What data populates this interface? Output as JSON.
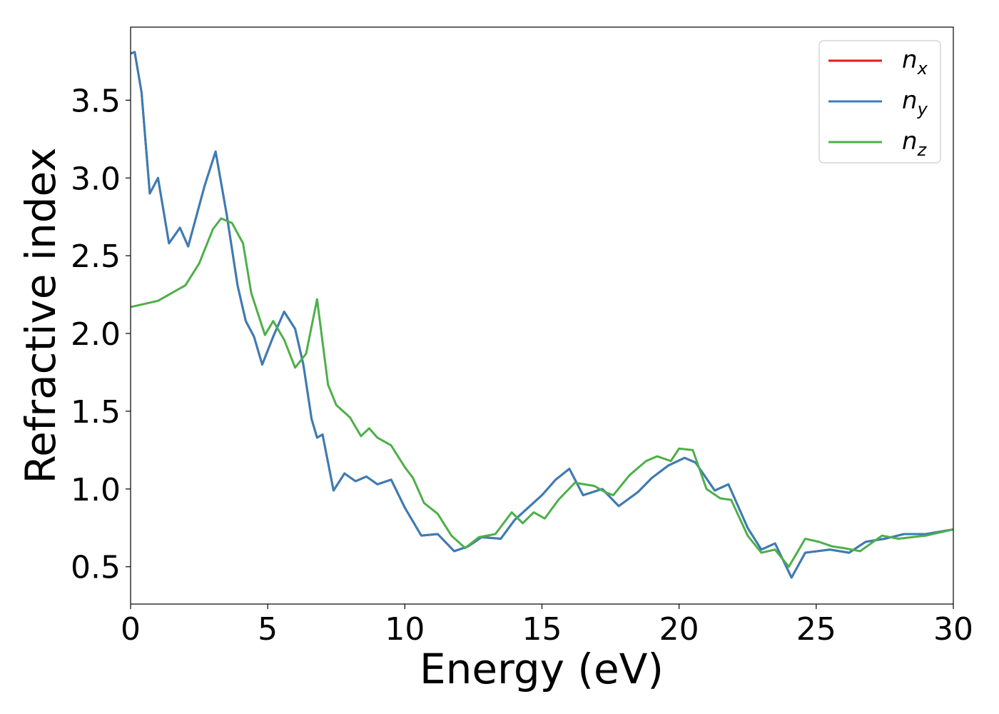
{
  "chart_data": {
    "type": "line",
    "xlabel": "Energy (eV)",
    "ylabel": "Refractive index",
    "xlim": [
      0,
      30
    ],
    "ylim": [
      0.26,
      3.97
    ],
    "xticks": [
      0,
      5,
      10,
      15,
      20,
      25,
      30
    ],
    "yticks": [
      0.5,
      {
        "value": 1,
        "label": "1.0"
      },
      1.5,
      {
        "value": 2,
        "label": "2.0"
      },
      2.5,
      {
        "value": 3,
        "label": "3.0"
      },
      3.5
    ],
    "legend": "upper right",
    "series": [
      {
        "name": "nx",
        "color": "#e41a1c",
        "x": [
          0,
          0.15,
          0.4,
          0.7,
          1.0,
          1.4,
          1.8,
          2.1,
          2.7,
          3.1,
          3.5,
          3.9,
          4.2,
          4.5,
          4.8,
          5.2,
          5.6,
          6.0,
          6.3,
          6.6,
          6.8,
          7.0,
          7.4,
          7.8,
          8.2,
          8.6,
          9.0,
          9.5,
          10.0,
          10.6,
          11.2,
          11.8,
          12.3,
          12.8,
          13.5,
          14.0,
          15.0,
          15.5,
          16.0,
          16.5,
          17.2,
          17.8,
          18.5,
          19.0,
          19.6,
          20.2,
          20.6,
          21.3,
          21.8,
          22.5,
          23.0,
          23.5,
          24.1,
          24.6,
          25.5,
          26.2,
          26.8,
          27.5,
          28.2,
          29.0,
          30
        ],
        "values": [
          3.8,
          3.81,
          3.55,
          2.9,
          3.0,
          2.58,
          2.68,
          2.56,
          2.95,
          3.17,
          2.77,
          2.31,
          2.08,
          1.98,
          1.8,
          1.98,
          2.14,
          2.03,
          1.8,
          1.45,
          1.33,
          1.35,
          0.99,
          1.1,
          1.05,
          1.08,
          1.03,
          1.06,
          0.88,
          0.7,
          0.71,
          0.6,
          0.63,
          0.69,
          0.68,
          0.8,
          0.96,
          1.06,
          1.13,
          0.96,
          1.0,
          0.89,
          0.98,
          1.07,
          1.15,
          1.2,
          1.17,
          0.99,
          1.03,
          0.75,
          0.61,
          0.65,
          0.43,
          0.59,
          0.61,
          0.59,
          0.66,
          0.68,
          0.71,
          0.71,
          0.74
        ]
      },
      {
        "name": "ny",
        "color": "#377eb8",
        "x": [
          0,
          0.15,
          0.4,
          0.7,
          1.0,
          1.4,
          1.8,
          2.1,
          2.7,
          3.1,
          3.5,
          3.9,
          4.2,
          4.5,
          4.8,
          5.2,
          5.6,
          6.0,
          6.3,
          6.6,
          6.8,
          7.0,
          7.4,
          7.8,
          8.2,
          8.6,
          9.0,
          9.5,
          10.0,
          10.6,
          11.2,
          11.8,
          12.3,
          12.8,
          13.5,
          14.0,
          15.0,
          15.5,
          16.0,
          16.5,
          17.2,
          17.8,
          18.5,
          19.0,
          19.6,
          20.2,
          20.6,
          21.3,
          21.8,
          22.5,
          23.0,
          23.5,
          24.1,
          24.6,
          25.5,
          26.2,
          26.8,
          27.5,
          28.2,
          29.0,
          30
        ],
        "values": [
          3.8,
          3.81,
          3.55,
          2.9,
          3.0,
          2.58,
          2.68,
          2.56,
          2.95,
          3.17,
          2.77,
          2.31,
          2.08,
          1.98,
          1.8,
          1.98,
          2.14,
          2.03,
          1.8,
          1.45,
          1.33,
          1.35,
          0.99,
          1.1,
          1.05,
          1.08,
          1.03,
          1.06,
          0.88,
          0.7,
          0.71,
          0.6,
          0.63,
          0.69,
          0.68,
          0.8,
          0.96,
          1.06,
          1.13,
          0.96,
          1.0,
          0.89,
          0.98,
          1.07,
          1.15,
          1.2,
          1.17,
          0.99,
          1.03,
          0.75,
          0.61,
          0.65,
          0.43,
          0.59,
          0.61,
          0.59,
          0.66,
          0.68,
          0.71,
          0.71,
          0.74
        ]
      },
      {
        "name": "nz",
        "color": "#4daf4a",
        "x": [
          0,
          1.0,
          1.5,
          2.0,
          2.5,
          3.0,
          3.3,
          3.7,
          4.1,
          4.4,
          4.9,
          5.2,
          5.6,
          6.0,
          6.4,
          6.8,
          7.2,
          7.5,
          8.0,
          8.4,
          8.7,
          9.0,
          9.5,
          10.0,
          10.3,
          10.7,
          11.2,
          11.7,
          12.2,
          12.7,
          13.3,
          13.9,
          14.3,
          14.7,
          15.1,
          15.6,
          16.2,
          16.9,
          17.3,
          17.6,
          18.2,
          18.8,
          19.2,
          19.7,
          20.0,
          20.5,
          21.0,
          21.5,
          21.9,
          22.5,
          23.0,
          23.5,
          24.0,
          24.6,
          25.1,
          25.6,
          26.0,
          26.6,
          27.4,
          28.0,
          29.0,
          30
        ],
        "values": [
          2.17,
          2.21,
          2.26,
          2.31,
          2.45,
          2.67,
          2.74,
          2.71,
          2.58,
          2.26,
          1.99,
          2.08,
          1.96,
          1.78,
          1.87,
          2.22,
          1.67,
          1.54,
          1.46,
          1.34,
          1.39,
          1.33,
          1.28,
          1.14,
          1.07,
          0.91,
          0.84,
          0.7,
          0.62,
          0.69,
          0.71,
          0.85,
          0.78,
          0.85,
          0.81,
          0.93,
          1.04,
          1.02,
          0.98,
          0.96,
          1.09,
          1.18,
          1.21,
          1.18,
          1.26,
          1.25,
          1.0,
          0.94,
          0.93,
          0.7,
          0.59,
          0.61,
          0.5,
          0.68,
          0.66,
          0.63,
          0.62,
          0.6,
          0.7,
          0.68,
          0.7,
          0.74
        ]
      }
    ]
  }
}
